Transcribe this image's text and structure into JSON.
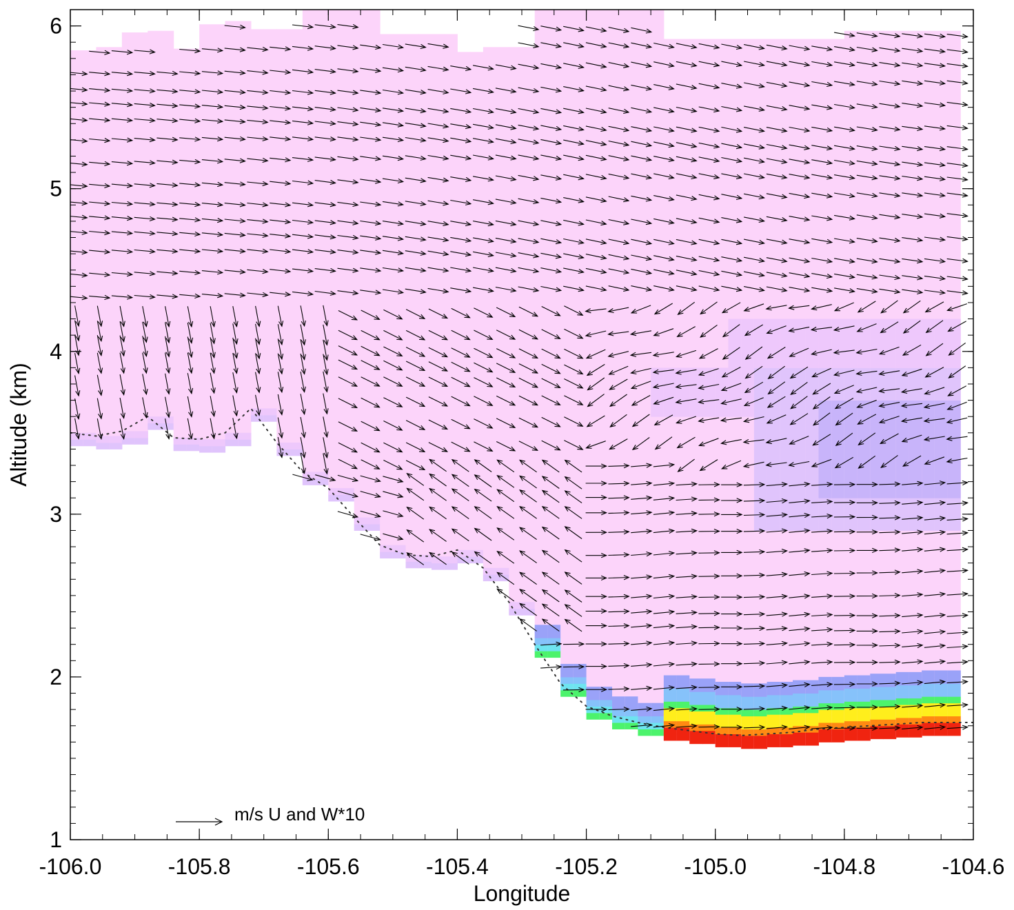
{
  "chart_data": {
    "type": "heatmap",
    "title": "",
    "xlabel": "Longitude",
    "ylabel": "Altitude (km)",
    "xlim": [
      -106.0,
      -104.6
    ],
    "ylim": [
      1.0,
      6.1
    ],
    "x_ticks": [
      "-106.0",
      "-105.8",
      "-105.6",
      "-105.4",
      "-105.2",
      "-105.0",
      "-104.8",
      "-104.6"
    ],
    "y_ticks": [
      "1",
      "2",
      "3",
      "4",
      "5",
      "6"
    ],
    "grid": false,
    "legend": "none",
    "vector_reference_label": "m/s  U and W*10",
    "terrain_top_km": [
      [
        -106.0,
        3.42
      ],
      [
        -105.96,
        3.4
      ],
      [
        -105.92,
        3.43
      ],
      [
        -105.88,
        3.52
      ],
      [
        -105.84,
        3.39
      ],
      [
        -105.8,
        3.38
      ],
      [
        -105.76,
        3.42
      ],
      [
        -105.72,
        3.57
      ],
      [
        -105.68,
        3.36
      ],
      [
        -105.64,
        3.18
      ],
      [
        -105.6,
        3.08
      ],
      [
        -105.56,
        2.9
      ],
      [
        -105.52,
        2.73
      ],
      [
        -105.48,
        2.67
      ],
      [
        -105.44,
        2.66
      ],
      [
        -105.4,
        2.7
      ],
      [
        -105.36,
        2.59
      ],
      [
        -105.32,
        2.38
      ],
      [
        -105.28,
        2.12
      ],
      [
        -105.24,
        1.88
      ],
      [
        -105.2,
        1.74
      ],
      [
        -105.16,
        1.68
      ],
      [
        -105.12,
        1.64
      ],
      [
        -105.08,
        1.61
      ],
      [
        -105.04,
        1.59
      ],
      [
        -105.0,
        1.57
      ],
      [
        -104.96,
        1.56
      ],
      [
        -104.92,
        1.57
      ],
      [
        -104.88,
        1.58
      ],
      [
        -104.84,
        1.6
      ],
      [
        -104.8,
        1.61
      ],
      [
        -104.76,
        1.62
      ],
      [
        -104.72,
        1.63
      ],
      [
        -104.68,
        1.64
      ]
    ],
    "domain_top_km": [
      [
        -106.0,
        5.85
      ],
      [
        -105.96,
        5.87
      ],
      [
        -105.92,
        5.96
      ],
      [
        -105.88,
        5.97
      ],
      [
        -105.84,
        5.86
      ],
      [
        -105.8,
        6.01
      ],
      [
        -105.76,
        6.03
      ],
      [
        -105.72,
        5.98
      ],
      [
        -105.68,
        5.98
      ],
      [
        -105.64,
        6.1
      ],
      [
        -105.6,
        6.1
      ],
      [
        -105.56,
        6.1
      ],
      [
        -105.52,
        5.95
      ],
      [
        -105.48,
        5.95
      ],
      [
        -105.44,
        5.95
      ],
      [
        -105.4,
        5.84
      ],
      [
        -105.36,
        5.87
      ],
      [
        -105.32,
        5.87
      ],
      [
        -105.28,
        6.1
      ],
      [
        -105.24,
        6.1
      ],
      [
        -104.96,
        5.92
      ],
      [
        -104.68,
        5.97
      ]
    ],
    "field_levels": [
      {
        "name": "background",
        "color": "#fcd4fa"
      },
      {
        "name": "light violet",
        "color": "#eec8fc"
      },
      {
        "name": "lavender",
        "color": "#e0c4fc"
      },
      {
        "name": "periwinkle",
        "color": "#c8b4fa"
      },
      {
        "name": "blue",
        "color": "#9aa2f8"
      },
      {
        "name": "light blue",
        "color": "#86c2fa"
      },
      {
        "name": "cyan",
        "color": "#6ee4f0"
      },
      {
        "name": "green",
        "color": "#4cf36c"
      },
      {
        "name": "yellow-green",
        "color": "#9aee34"
      },
      {
        "name": "yellow",
        "color": "#ffee1c"
      },
      {
        "name": "orange",
        "color": "#ff8a12"
      },
      {
        "name": "red",
        "color": "#f02410"
      }
    ]
  }
}
